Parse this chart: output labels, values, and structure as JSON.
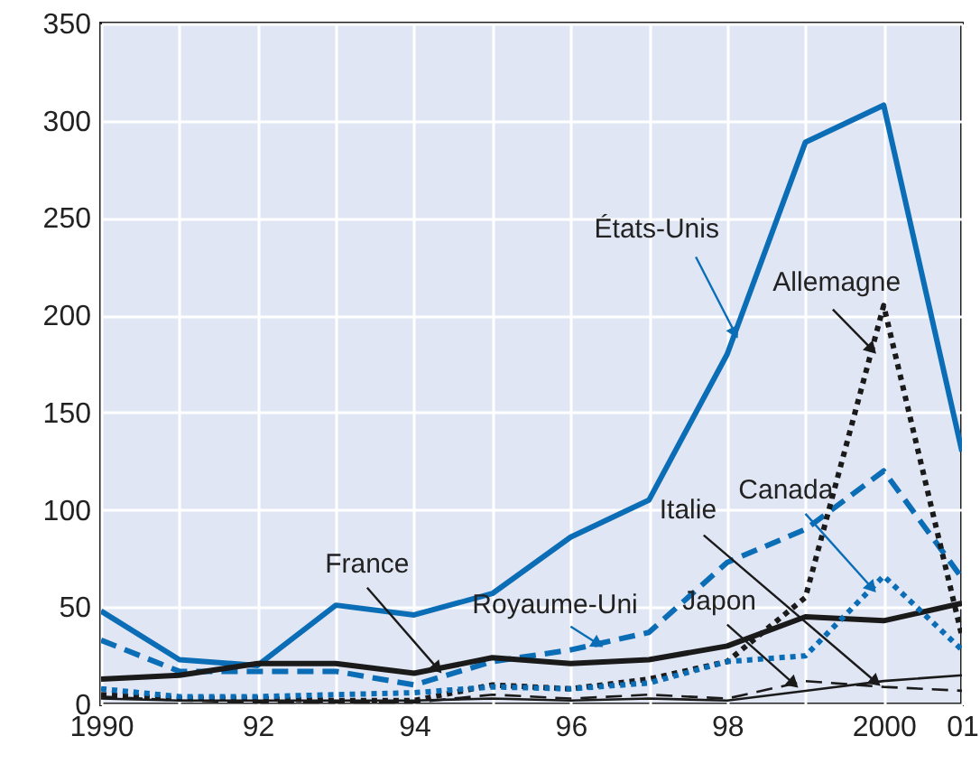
{
  "chart_data": {
    "type": "line",
    "x": [
      1990,
      1991,
      1992,
      1993,
      1994,
      1995,
      1996,
      1997,
      1998,
      1999,
      2000,
      2001
    ],
    "series": [
      {
        "name": "États-Unis",
        "color": "#0a6db5",
        "line_style": "solid",
        "values": [
          48,
          23,
          20,
          51,
          46,
          57,
          86,
          105,
          180,
          289,
          308,
          130
        ]
      },
      {
        "name": "Royaume-Uni",
        "color": "#0a6db5",
        "line_style": "dashed",
        "values": [
          33,
          17,
          17,
          17,
          10,
          22,
          28,
          37,
          73,
          90,
          120,
          65
        ]
      },
      {
        "name": "France",
        "color": "#1a1a1a",
        "line_style": "solid",
        "values": [
          13,
          15,
          21,
          21,
          16,
          24,
          21,
          23,
          30,
          45,
          43,
          52
        ]
      },
      {
        "name": "Allemagne",
        "color": "#1a1a1a",
        "line_style": "dotted",
        "values": [
          5,
          3,
          3,
          2,
          2,
          10,
          8,
          13,
          22,
          55,
          205,
          35
        ]
      },
      {
        "name": "Canada",
        "color": "#0a6db5",
        "line_style": "dotted",
        "values": [
          8,
          4,
          4,
          5,
          6,
          9,
          8,
          11,
          22,
          25,
          66,
          28
        ]
      },
      {
        "name": "Japon",
        "color": "#1a1a1a",
        "line_style": "dashed",
        "values": [
          4,
          2,
          1,
          1,
          1,
          5,
          3,
          5,
          3,
          12,
          9,
          7
        ]
      },
      {
        "name": "Italie",
        "color": "#1a1a1a",
        "line_style": "solid",
        "values": [
          3,
          2,
          2,
          2,
          2,
          3,
          2,
          3,
          2,
          7,
          12,
          15
        ]
      }
    ],
    "xlim": [
      1990,
      2001
    ],
    "xticks": [
      1990,
      {
        "value": 1991,
        "label": null
      },
      {
        "value": 1992,
        "label": "92"
      },
      {
        "value": 1993,
        "label": null
      },
      {
        "value": 1994,
        "label": "94"
      },
      {
        "value": 1995,
        "label": null
      },
      {
        "value": 1996,
        "label": "96"
      },
      {
        "value": 1997,
        "label": null
      },
      {
        "value": 1998,
        "label": "98"
      },
      {
        "value": 1999,
        "label": null
      },
      2000,
      {
        "value": 2001,
        "label": "01"
      }
    ],
    "ylim": [
      0,
      350
    ],
    "yticks": [
      0,
      50,
      100,
      150,
      200,
      250,
      300,
      350
    ],
    "grid": true
  }
}
